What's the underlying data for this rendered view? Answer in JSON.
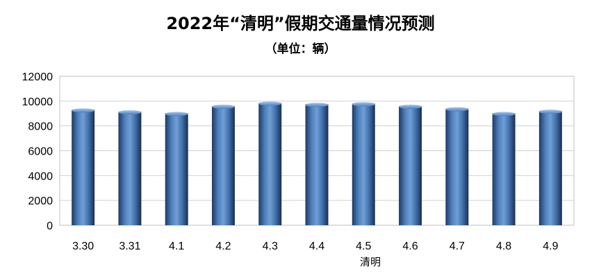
{
  "chart_data": {
    "type": "bar",
    "title": "2022年“清明”假期交通量情况预测",
    "subtitle": "（单位：辆）",
    "xlabel": "清明",
    "ylabel": "",
    "categories": [
      "3.30",
      "3.31",
      "4.1",
      "4.2",
      "4.3",
      "4.4",
      "4.5",
      "4.6",
      "4.7",
      "4.8",
      "4.9"
    ],
    "values": [
      9300,
      9150,
      9020,
      9600,
      9850,
      9750,
      9800,
      9600,
      9400,
      9020,
      9200
    ],
    "ylim": [
      0,
      12000
    ],
    "yticks": [
      0,
      2000,
      4000,
      6000,
      8000,
      10000,
      12000
    ],
    "grid": true,
    "legend": "none",
    "bar_color": "#4f81bd"
  }
}
